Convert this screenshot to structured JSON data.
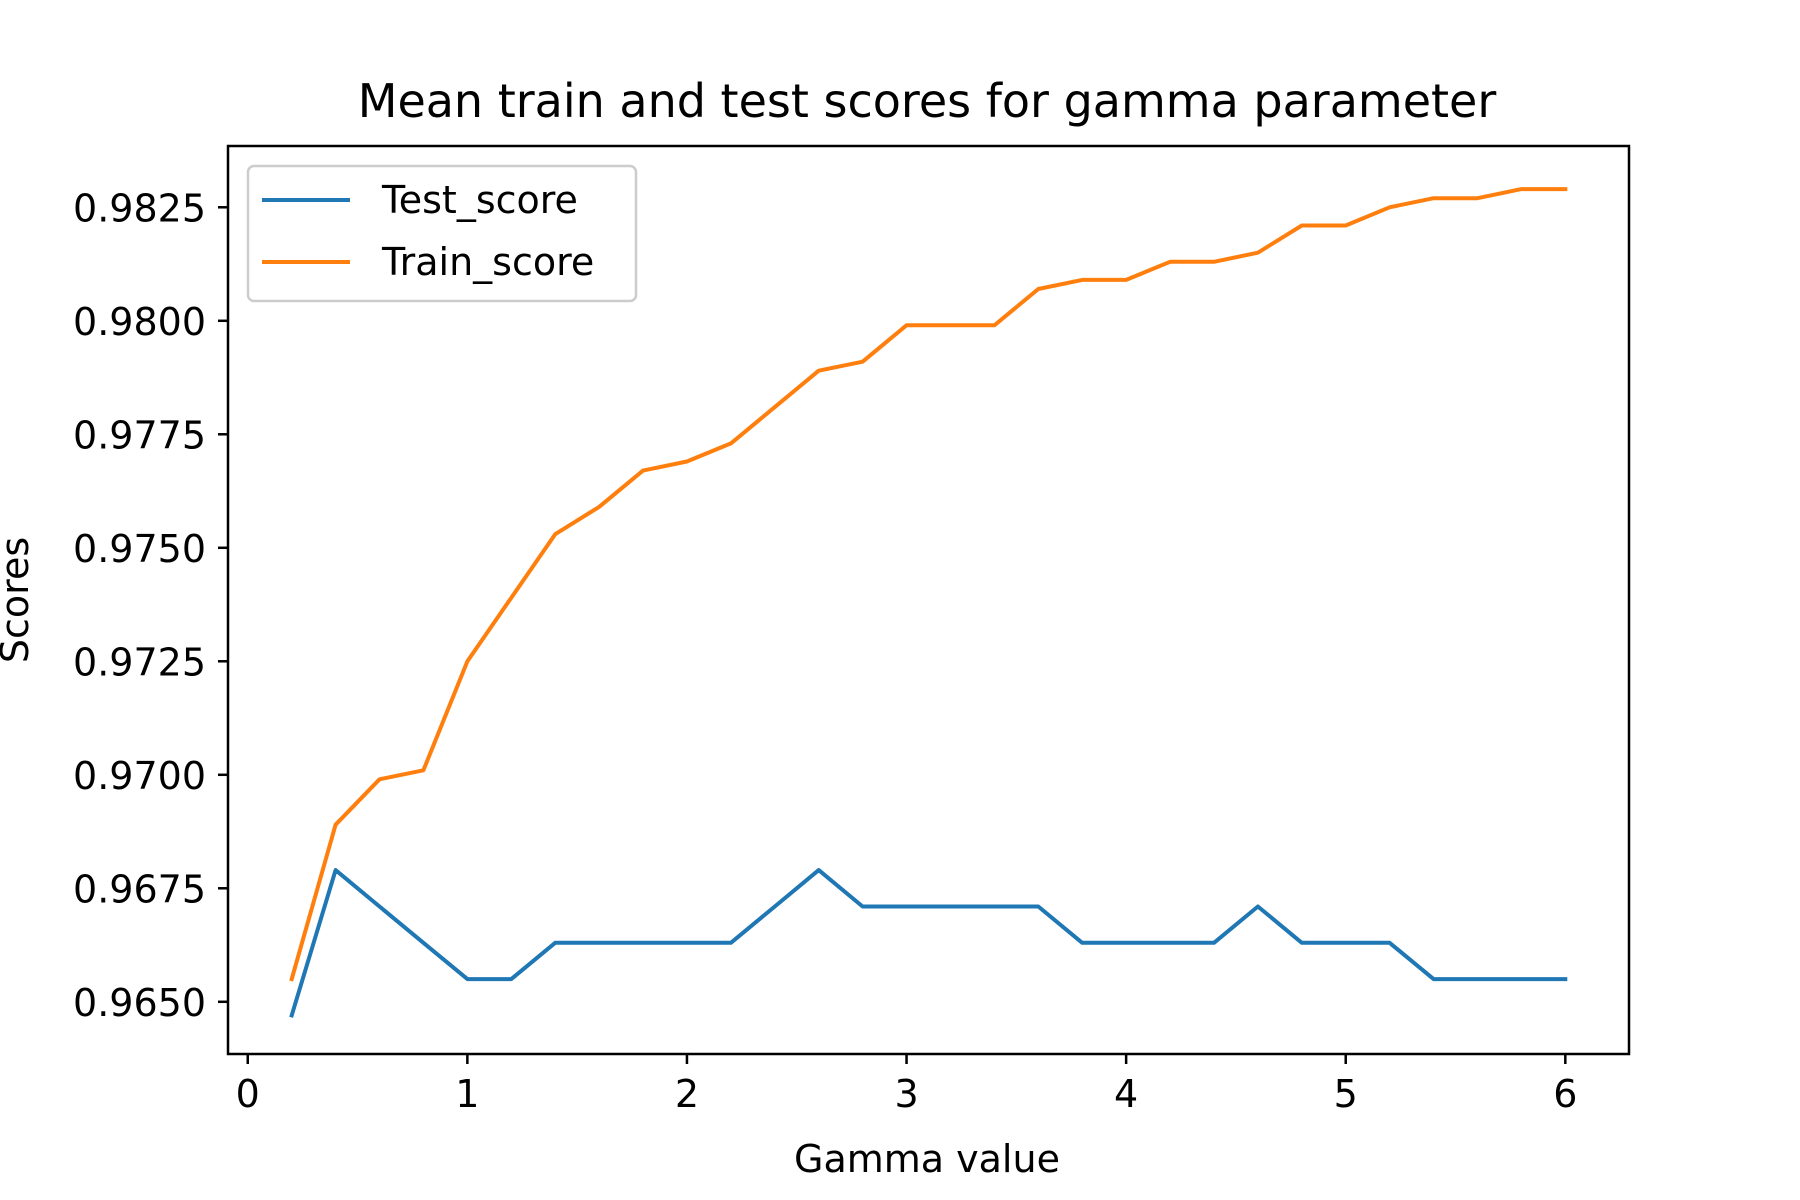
{
  "chart_data": {
    "type": "line",
    "title": "Mean train and test scores for gamma parameter",
    "xlabel": "Gamma value",
    "ylabel": "Scores",
    "xlim": [
      -0.09,
      6.29
    ],
    "ylim": [
      0.96385,
      0.98385
    ],
    "xticks": [
      0,
      1,
      2,
      3,
      4,
      5,
      6
    ],
    "xtick_labels": [
      "0",
      "1",
      "2",
      "3",
      "4",
      "5",
      "6"
    ],
    "yticks": [
      0.965,
      0.9675,
      0.97,
      0.9725,
      0.975,
      0.9775,
      0.98,
      0.9825
    ],
    "ytick_labels": [
      "0.9650",
      "0.9675",
      "0.9700",
      "0.9725",
      "0.9750",
      "0.9775",
      "0.9800",
      "0.9825"
    ],
    "grid": false,
    "legend_position": "top-left",
    "x": [
      0.2,
      0.4,
      0.6,
      0.8,
      1.0,
      1.2,
      1.4,
      1.6,
      1.8,
      2.0,
      2.2,
      2.4,
      2.6,
      2.8,
      3.0,
      3.2,
      3.4,
      3.6,
      3.8,
      4.0,
      4.2,
      4.4,
      4.6,
      4.8,
      5.0,
      5.2,
      5.4,
      5.6,
      5.8,
      6.0
    ],
    "series": [
      {
        "name": "Test_score",
        "color": "#1f77b4",
        "values": [
          0.9647,
          0.9679,
          0.9671,
          0.9663,
          0.9655,
          0.9655,
          0.9663,
          0.9663,
          0.9663,
          0.9663,
          0.9663,
          0.9671,
          0.9679,
          0.9671,
          0.9671,
          0.9671,
          0.9671,
          0.9671,
          0.9663,
          0.9663,
          0.9663,
          0.9663,
          0.9671,
          0.9663,
          0.9663,
          0.9663,
          0.9655,
          0.9655,
          0.9655,
          0.9655
        ]
      },
      {
        "name": "Train_score",
        "color": "#ff7f0e",
        "values": [
          0.9655,
          0.9689,
          0.9699,
          0.9701,
          0.9725,
          0.9739,
          0.9753,
          0.9759,
          0.9767,
          0.9769,
          0.9773,
          0.9781,
          0.9789,
          0.9791,
          0.9799,
          0.9799,
          0.9799,
          0.9807,
          0.9809,
          0.9809,
          0.9813,
          0.9813,
          0.9815,
          0.9821,
          0.9821,
          0.9825,
          0.9827,
          0.9827,
          0.9829,
          0.9829
        ]
      }
    ]
  }
}
